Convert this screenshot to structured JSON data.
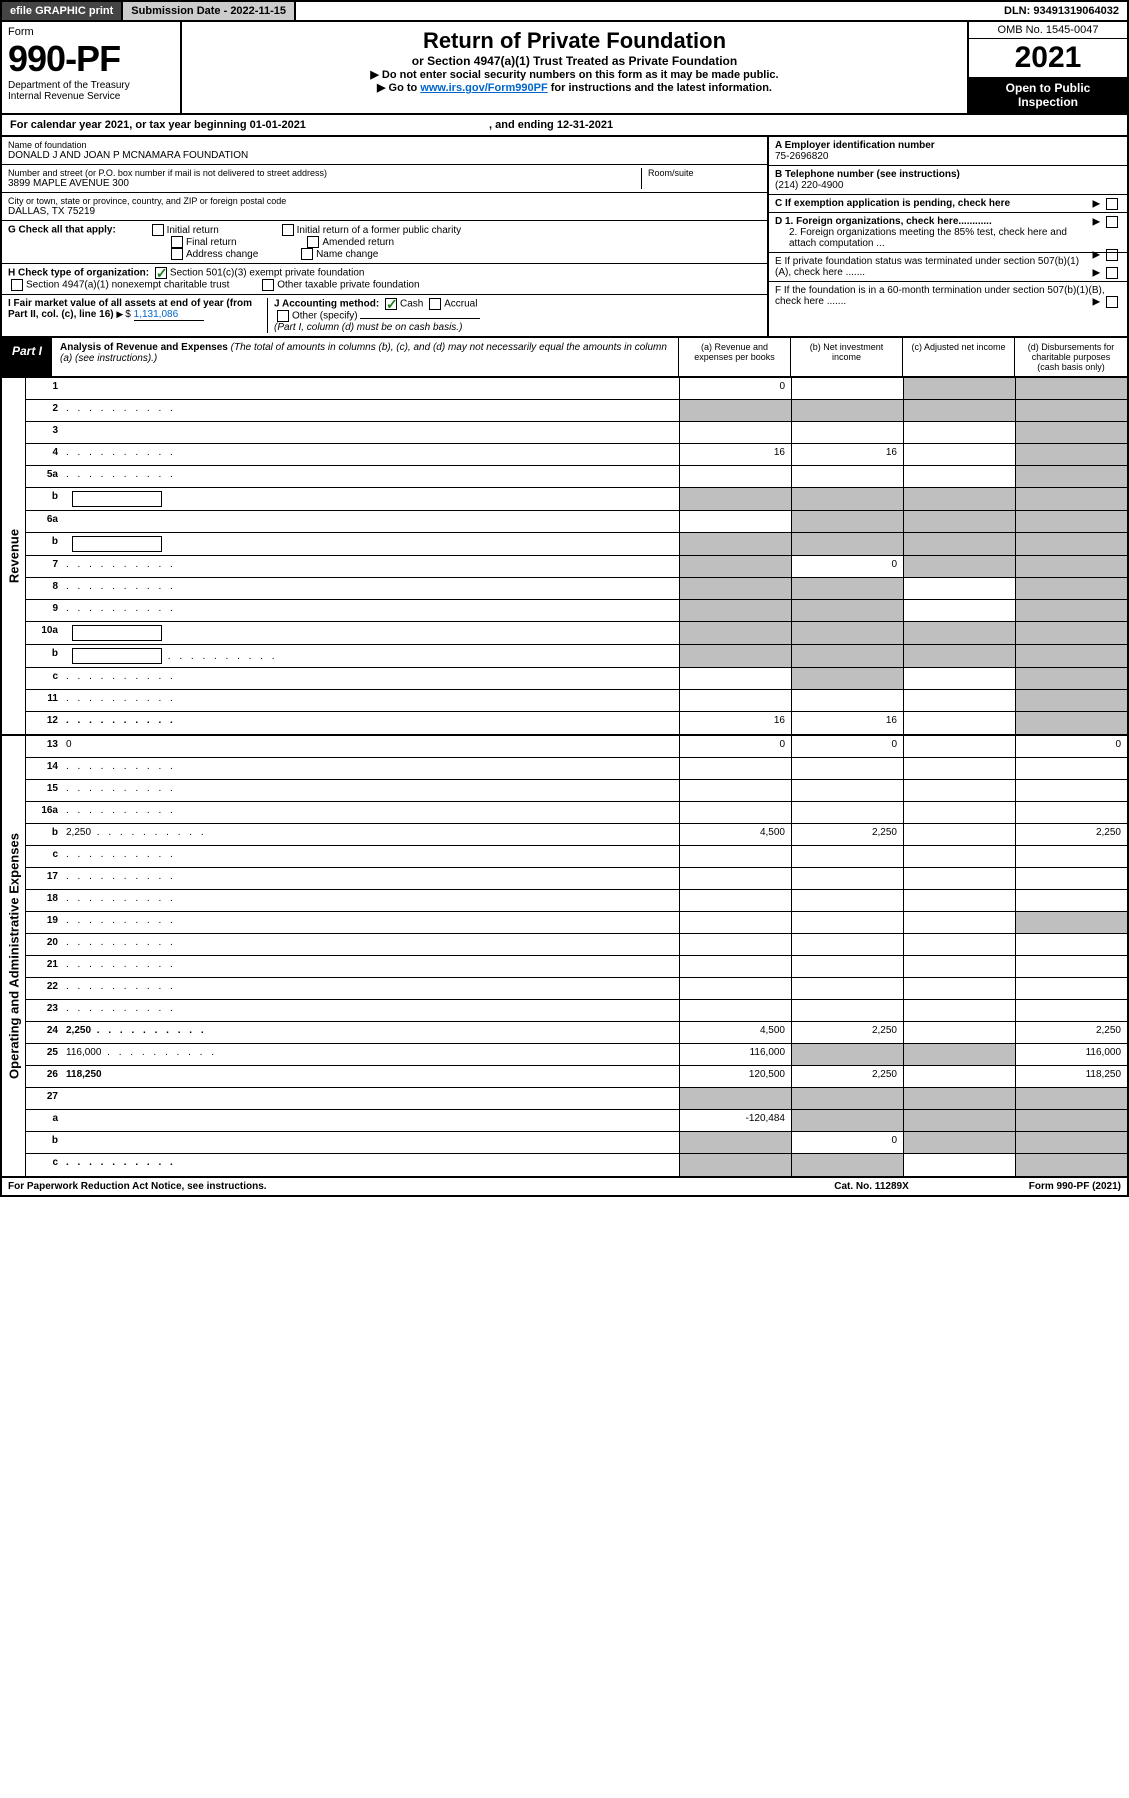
{
  "top": {
    "efile": "efile GRAPHIC print",
    "submission_label": "Submission Date - 2022-11-15",
    "dln": "DLN: 93491319064032"
  },
  "header": {
    "form_word": "Form",
    "form_no": "990-PF",
    "dept": "Department of the Treasury",
    "irs": "Internal Revenue Service",
    "title": "Return of Private Foundation",
    "subtitle": "or Section 4947(a)(1) Trust Treated as Private Foundation",
    "directive1": "▶ Do not enter social security numbers on this form as it may be made public.",
    "directive2_pre": "▶ Go to ",
    "directive2_link": "www.irs.gov/Form990PF",
    "directive2_post": " for instructions and the latest information.",
    "omb": "OMB No. 1545-0047",
    "year": "2021",
    "open_public": "Open to Public Inspection"
  },
  "calendar": {
    "text_pre": "For calendar year 2021, or tax year beginning ",
    "begin": "01-01-2021",
    "mid": ", and ending ",
    "end": "12-31-2021"
  },
  "entity": {
    "name_label": "Name of foundation",
    "name": "DONALD J AND JOAN P MCNAMARA FOUNDATION",
    "addr_label": "Number and street (or P.O. box number if mail is not delivered to street address)",
    "addr": "3899 MAPLE AVENUE 300",
    "room_label": "Room/suite",
    "city_label": "City or town, state or province, country, and ZIP or foreign postal code",
    "city": "DALLAS, TX  75219"
  },
  "right_box": {
    "a_label": "A Employer identification number",
    "ein": "75-2696820",
    "b_label": "B Telephone number (see instructions)",
    "phone": "(214) 220-4900",
    "c_label": "C If exemption application is pending, check here",
    "d1": "D 1. Foreign organizations, check here............",
    "d2": "2. Foreign organizations meeting the 85% test, check here and attach computation ...",
    "e": "E   If private foundation status was terminated under section 507(b)(1)(A), check here .......",
    "f": "F   If the foundation is in a 60-month termination under section 507(b)(1)(B), check here ......."
  },
  "g": {
    "label": "G Check all that apply:",
    "opts": [
      "Initial return",
      "Final return",
      "Address change",
      "Initial return of a former public charity",
      "Amended return",
      "Name change"
    ]
  },
  "h": {
    "label": "H Check type of organization:",
    "opt1": "Section 501(c)(3) exempt private foundation",
    "opt2": "Section 4947(a)(1) nonexempt charitable trust",
    "opt3": "Other taxable private foundation"
  },
  "i": {
    "label": "I Fair market value of all assets at end of year (from Part II, col. (c), line 16)",
    "value": "1,131,086"
  },
  "j": {
    "label": "J Accounting method:",
    "cash": "Cash",
    "accrual": "Accrual",
    "other": "Other (specify)",
    "note": "(Part I, column (d) must be on cash basis.)"
  },
  "part1": {
    "label": "Part I",
    "title": "Analysis of Revenue and Expenses",
    "title_note": " (The total of amounts in columns (b), (c), and (d) may not necessarily equal the amounts in column (a) (see instructions).)",
    "col_a": "(a)   Revenue and expenses per books",
    "col_b": "(b)   Net investment income",
    "col_c": "(c)   Adjusted net income",
    "col_d": "(d)   Disbursements for charitable purposes (cash basis only)"
  },
  "sections": {
    "revenue": "Revenue",
    "expenses": "Operating and Administrative Expenses"
  },
  "rows": [
    {
      "n": "1",
      "d": "",
      "a": "0",
      "b": "",
      "c": "",
      "shade_c": true,
      "shade_d": true
    },
    {
      "n": "2",
      "d": "",
      "a": "",
      "b": "",
      "c": "",
      "dots": true,
      "shade_a": true,
      "shade_b": true,
      "shade_c": true,
      "shade_d": true
    },
    {
      "n": "3",
      "d": "",
      "a": "",
      "b": "",
      "c": "",
      "shade_d": true
    },
    {
      "n": "4",
      "d": "",
      "a": "16",
      "b": "16",
      "c": "",
      "dots": true,
      "shade_d": true
    },
    {
      "n": "5a",
      "d": "",
      "a": "",
      "b": "",
      "c": "",
      "dots": true,
      "shade_d": true
    },
    {
      "n": "b",
      "d": "",
      "a": "",
      "b": "",
      "c": "",
      "sub": true,
      "shade_a": true,
      "shade_b": true,
      "shade_c": true,
      "shade_d": true
    },
    {
      "n": "6a",
      "d": "",
      "a": "",
      "b": "",
      "c": "",
      "shade_b": true,
      "shade_c": true,
      "shade_d": true
    },
    {
      "n": "b",
      "d": "",
      "a": "",
      "b": "",
      "c": "",
      "sub": true,
      "shade_a": true,
      "shade_b": true,
      "shade_c": true,
      "shade_d": true
    },
    {
      "n": "7",
      "d": "",
      "a": "",
      "b": "0",
      "c": "",
      "dots": true,
      "shade_a": true,
      "shade_c": true,
      "shade_d": true
    },
    {
      "n": "8",
      "d": "",
      "a": "",
      "b": "",
      "c": "",
      "dots": true,
      "shade_a": true,
      "shade_b": true,
      "shade_d": true
    },
    {
      "n": "9",
      "d": "",
      "a": "",
      "b": "",
      "c": "",
      "dots": true,
      "shade_a": true,
      "shade_b": true,
      "shade_d": true
    },
    {
      "n": "10a",
      "d": "",
      "a": "",
      "b": "",
      "c": "",
      "sub": true,
      "shade_a": true,
      "shade_b": true,
      "shade_c": true,
      "shade_d": true
    },
    {
      "n": "b",
      "d": "",
      "a": "",
      "b": "",
      "c": "",
      "dots": true,
      "sub": true,
      "shade_a": true,
      "shade_b": true,
      "shade_c": true,
      "shade_d": true
    },
    {
      "n": "c",
      "d": "",
      "a": "",
      "b": "",
      "c": "",
      "dots": true,
      "shade_b": true,
      "shade_d": true
    },
    {
      "n": "11",
      "d": "",
      "a": "",
      "b": "",
      "c": "",
      "dots": true,
      "shade_d": true
    },
    {
      "n": "12",
      "d": "",
      "a": "16",
      "b": "16",
      "c": "",
      "bold": true,
      "dots": true,
      "shade_d": true
    }
  ],
  "rows2": [
    {
      "n": "13",
      "d": "0",
      "a": "0",
      "b": "0",
      "c": ""
    },
    {
      "n": "14",
      "d": "",
      "a": "",
      "b": "",
      "c": "",
      "dots": true
    },
    {
      "n": "15",
      "d": "",
      "a": "",
      "b": "",
      "c": "",
      "dots": true
    },
    {
      "n": "16a",
      "d": "",
      "a": "",
      "b": "",
      "c": "",
      "dots": true
    },
    {
      "n": "b",
      "d": "2,250",
      "a": "4,500",
      "b": "2,250",
      "c": "",
      "dots": true
    },
    {
      "n": "c",
      "d": "",
      "a": "",
      "b": "",
      "c": "",
      "dots": true
    },
    {
      "n": "17",
      "d": "",
      "a": "",
      "b": "",
      "c": "",
      "dots": true
    },
    {
      "n": "18",
      "d": "",
      "a": "",
      "b": "",
      "c": "",
      "dots": true
    },
    {
      "n": "19",
      "d": "",
      "a": "",
      "b": "",
      "c": "",
      "dots": true,
      "shade_d": true
    },
    {
      "n": "20",
      "d": "",
      "a": "",
      "b": "",
      "c": "",
      "dots": true
    },
    {
      "n": "21",
      "d": "",
      "a": "",
      "b": "",
      "c": "",
      "dots": true
    },
    {
      "n": "22",
      "d": "",
      "a": "",
      "b": "",
      "c": "",
      "dots": true
    },
    {
      "n": "23",
      "d": "",
      "a": "",
      "b": "",
      "c": "",
      "dots": true
    },
    {
      "n": "24",
      "d": "2,250",
      "a": "4,500",
      "b": "2,250",
      "c": "",
      "bold": true,
      "dots": true
    },
    {
      "n": "25",
      "d": "116,000",
      "a": "116,000",
      "b": "",
      "c": "",
      "dots": true,
      "shade_b": true,
      "shade_c": true
    },
    {
      "n": "26",
      "d": "118,250",
      "a": "120,500",
      "b": "2,250",
      "c": "",
      "bold": true
    },
    {
      "n": "27",
      "d": "",
      "a": "",
      "b": "",
      "c": "",
      "shade_a": true,
      "shade_b": true,
      "shade_c": true,
      "shade_d": true
    },
    {
      "n": "a",
      "d": "",
      "a": "-120,484",
      "b": "",
      "c": "",
      "bold": true,
      "shade_b": true,
      "shade_c": true,
      "shade_d": true
    },
    {
      "n": "b",
      "d": "",
      "a": "",
      "b": "0",
      "c": "",
      "bold": true,
      "shade_a": true,
      "shade_c": true,
      "shade_d": true
    },
    {
      "n": "c",
      "d": "",
      "a": "",
      "b": "",
      "c": "",
      "bold": true,
      "dots": true,
      "shade_a": true,
      "shade_b": true,
      "shade_d": true
    }
  ],
  "footer": {
    "left": "For Paperwork Reduction Act Notice, see instructions.",
    "mid": "Cat. No. 11289X",
    "right": "Form 990-PF (2021)"
  },
  "colors": {
    "link": "#0066cc",
    "check": "#1a7f1a",
    "shade": "#bfbfbf",
    "dark_btn": "#444444",
    "light_btn": "#cccccc"
  }
}
